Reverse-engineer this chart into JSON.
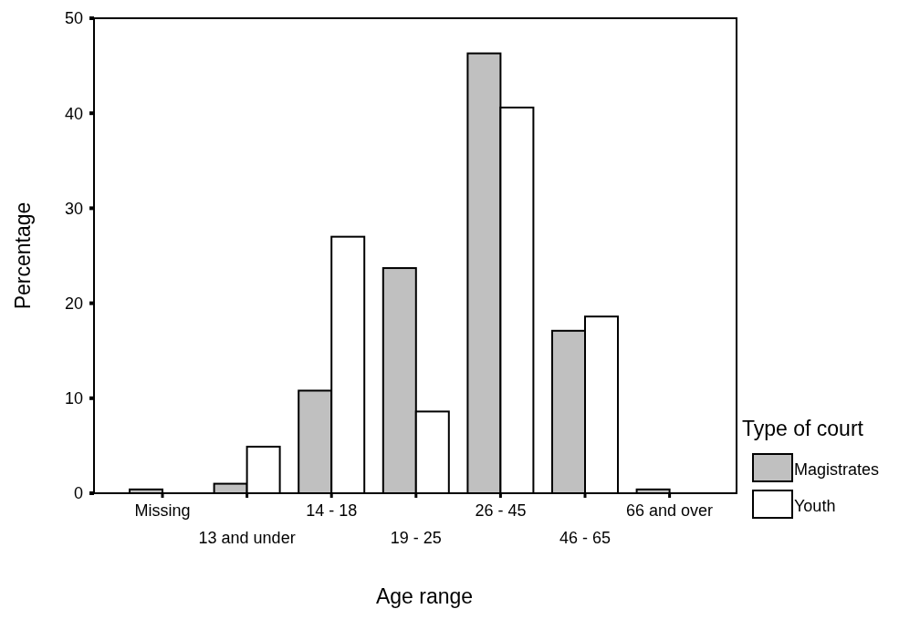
{
  "chart_data": {
    "type": "bar",
    "xlabel": "Age range",
    "ylabel": "Percentage",
    "legend_title": "Type of court",
    "legend": "right",
    "categories": [
      "Missing",
      "13 and under",
      "14 - 18",
      "19 - 25",
      "26 - 45",
      "46 - 65",
      "66 and over"
    ],
    "series": [
      {
        "name": "Magistrates",
        "color": "#c0c0c0",
        "values": [
          0.4,
          1.0,
          10.8,
          23.7,
          46.3,
          17.1,
          0.4
        ]
      },
      {
        "name": "Youth",
        "color": "#ffffff",
        "values": [
          0,
          4.9,
          27.0,
          8.6,
          40.6,
          18.6,
          0
        ]
      }
    ],
    "ylim": [
      0,
      50
    ],
    "yticks": [
      0,
      10,
      20,
      30,
      40,
      50
    ],
    "grid": false
  }
}
